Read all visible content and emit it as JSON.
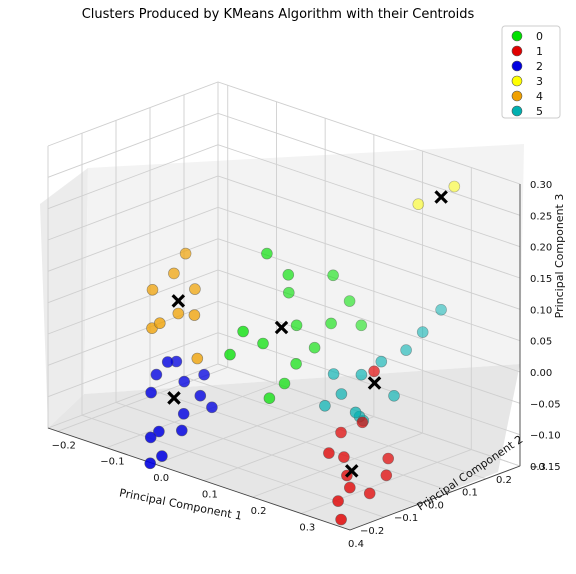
{
  "chart_data": {
    "type": "scatter",
    "title": "Clusters Produced by KMeans Algorithm with their Centroids",
    "xlabel": "Principal Component 1",
    "ylabel": "Principal Component 2",
    "zlabel": "Principal Component 3",
    "xticks": [
      "−0.2",
      "−0.1",
      "0.0",
      "0.1",
      "0.2",
      "0.3",
      "0.4"
    ],
    "yticks": [
      "−0.2",
      "−0.1",
      "0.0",
      "0.1",
      "0.2",
      "0.3"
    ],
    "zticks": [
      "0.30",
      "0.25",
      "0.20",
      "0.15",
      "0.10",
      "0.05",
      "0.00",
      "−0.05",
      "−0.10",
      "−0.15"
    ],
    "xlim": [
      -0.22,
      0.4
    ],
    "ylim": [
      -0.2,
      0.3
    ],
    "zlim": [
      -0.15,
      0.3
    ],
    "grid": true,
    "legend_position": "top-right",
    "series": [
      {
        "name": "0",
        "color": "#00e000",
        "points": [
          [
            0.02,
            0.1,
            0.13
          ],
          [
            0.05,
            0.12,
            0.1
          ],
          [
            0.03,
            0.15,
            0.06
          ],
          [
            0.06,
            0.13,
            0.02
          ],
          [
            0.09,
            0.14,
            -0.01
          ],
          [
            0.08,
            0.1,
            -0.03
          ],
          [
            0.04,
            0.06,
            0.0
          ],
          [
            0.1,
            0.18,
            0.1
          ],
          [
            0.12,
            0.2,
            0.06
          ],
          [
            0.07,
            0.08,
            -0.06
          ],
          [
            0.02,
            0.03,
            0.02
          ],
          [
            0.0,
            0.02,
            -0.02
          ],
          [
            0.11,
            0.16,
            0.03
          ],
          [
            0.06,
            0.05,
            -0.08
          ],
          [
            0.13,
            0.22,
            0.02
          ]
        ]
      },
      {
        "name": "1",
        "color": "#e00000",
        "points": [
          [
            0.24,
            0.02,
            -0.15
          ],
          [
            0.26,
            0.0,
            -0.16
          ],
          [
            0.22,
            0.04,
            -0.13
          ],
          [
            0.28,
            0.03,
            -0.17
          ],
          [
            0.25,
            -0.02,
            -0.18
          ],
          [
            0.2,
            0.06,
            -0.1
          ],
          [
            0.3,
            0.05,
            -0.14
          ],
          [
            0.23,
            0.08,
            -0.08
          ],
          [
            0.27,
            -0.04,
            -0.2
          ],
          [
            0.21,
            0.01,
            -0.12
          ],
          [
            0.29,
            0.07,
            -0.12
          ],
          [
            0.24,
            0.1,
            0.0
          ]
        ]
      },
      {
        "name": "2",
        "color": "#0000e0",
        "points": [
          [
            -0.1,
            -0.02,
            -0.05
          ],
          [
            -0.08,
            0.0,
            -0.08
          ],
          [
            -0.12,
            -0.04,
            -0.1
          ],
          [
            -0.06,
            -0.03,
            -0.12
          ],
          [
            -0.09,
            -0.06,
            -0.15
          ],
          [
            -0.04,
            -0.01,
            -0.09
          ],
          [
            -0.07,
            -0.08,
            -0.18
          ],
          [
            -0.11,
            0.02,
            -0.06
          ],
          [
            -0.05,
            -0.05,
            -0.14
          ],
          [
            -0.13,
            -0.01,
            -0.08
          ],
          [
            -0.03,
            0.01,
            -0.11
          ],
          [
            -0.08,
            -0.1,
            -0.19
          ],
          [
            -0.1,
            -0.07,
            -0.16
          ],
          [
            -0.06,
            0.03,
            -0.07
          ]
        ]
      },
      {
        "name": "3",
        "color": "#ffff00",
        "points": [
          [
            0.3,
            0.25,
            0.28
          ],
          [
            0.24,
            0.23,
            0.24
          ]
        ]
      },
      {
        "name": "4",
        "color": "#f0a000",
        "points": [
          [
            -0.18,
            0.05,
            0.03
          ],
          [
            -0.15,
            0.07,
            0.06
          ],
          [
            -0.12,
            0.04,
            0.01
          ],
          [
            -0.16,
            0.02,
            -0.02
          ],
          [
            -0.1,
            0.06,
            0.05
          ],
          [
            -0.13,
            0.0,
            0.0
          ],
          [
            -0.08,
            0.03,
            0.02
          ],
          [
            -0.14,
            0.09,
            0.09
          ],
          [
            -0.06,
            0.01,
            -0.04
          ]
        ]
      },
      {
        "name": "5",
        "color": "#00b0b0",
        "points": [
          [
            0.2,
            0.12,
            -0.02
          ],
          [
            0.22,
            0.15,
            0.0
          ],
          [
            0.18,
            0.09,
            -0.05
          ],
          [
            0.25,
            0.18,
            0.02
          ],
          [
            0.16,
            0.07,
            -0.07
          ],
          [
            0.21,
            0.1,
            -0.08
          ],
          [
            0.27,
            0.2,
            0.05
          ],
          [
            0.19,
            0.14,
            -0.1
          ],
          [
            0.23,
            0.06,
            -0.06
          ],
          [
            0.15,
            0.11,
            -0.03
          ],
          [
            0.28,
            0.24,
            0.08
          ],
          [
            0.26,
            0.13,
            -0.04
          ]
        ]
      }
    ],
    "centroids": [
      [
        0.05,
        0.1,
        0.02
      ],
      [
        0.25,
        0.02,
        -0.14
      ],
      [
        -0.08,
        -0.03,
        -0.1
      ],
      [
        0.28,
        0.24,
        0.26
      ],
      [
        -0.12,
        0.04,
        0.03
      ],
      [
        0.22,
        0.13,
        -0.03
      ]
    ]
  }
}
